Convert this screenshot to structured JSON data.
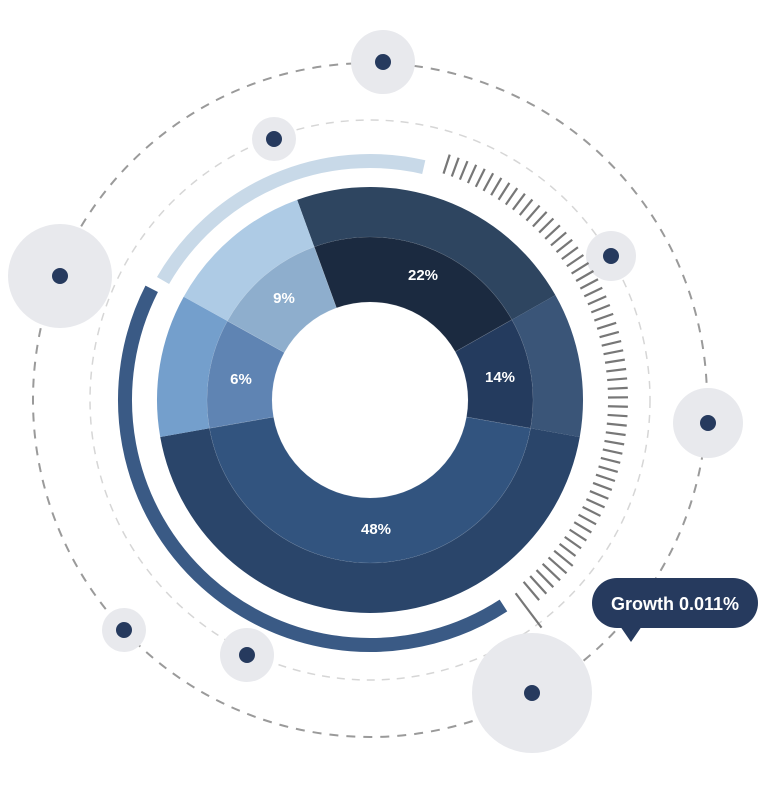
{
  "chart_data": {
    "type": "pie",
    "variant": "nested-donut",
    "categories": [
      "22%",
      "14%",
      "48%",
      "6%",
      "9%"
    ],
    "values": [
      22,
      14,
      48,
      6,
      9
    ],
    "inner_colors": [
      "#1b2a40",
      "#243b5e",
      "#32547f",
      "#5f84b3",
      "#8eaecd"
    ],
    "outer_colors": [
      "#2e4560",
      "#3a5578",
      "#2a456a",
      "#749fcc",
      "#aecbe5"
    ],
    "data_labels": [
      "22%",
      "14%",
      "48%",
      "6%",
      "9%"
    ],
    "annotation": "Growth 0.011%"
  },
  "colors": {
    "accent_dark": "#263a5e",
    "arc_light": "#c8d9e8",
    "arc_dark": "#3a5a85",
    "ticks": "#777777",
    "halo": "#e8e9ed",
    "dash_outer": "#9a9a9a",
    "dash_inner": "#d6d6d6"
  }
}
